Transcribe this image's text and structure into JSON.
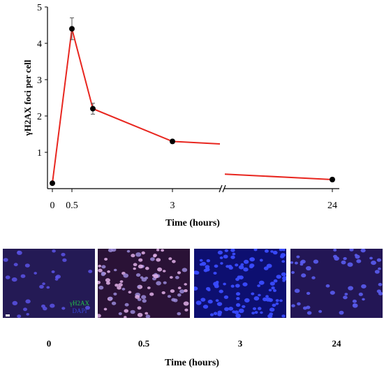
{
  "chart_data": {
    "type": "line",
    "ylabel": "γH2AX foci per cell",
    "xlabel": "Time (hours)",
    "ylim": [
      0,
      5
    ],
    "yticks": [
      1,
      2,
      3,
      4,
      5
    ],
    "xticks": [
      "0",
      "0.5",
      "3",
      "24"
    ],
    "axis_break": true,
    "series": [
      {
        "points": [
          {
            "x": 0,
            "y": 0.15,
            "err": 0
          },
          {
            "x": 0.5,
            "y": 4.4,
            "err": 0.3
          },
          {
            "x": 1,
            "y": 2.2,
            "err": 0.15
          },
          {
            "x": 3,
            "y": 1.3,
            "err": 0.05
          },
          {
            "x": 24,
            "y": 0.25,
            "err": 0.05
          }
        ],
        "trailing_segment_end": {
          "x": 5,
          "y": 1.23
        },
        "leading_segment_start": {
          "x": 18,
          "y": 0.4
        }
      }
    ],
    "colors": {
      "line": "#e8261f",
      "marker": "#000000"
    }
  },
  "panels": {
    "labels": [
      "0",
      "0.5",
      "3",
      "24"
    ],
    "legend": {
      "gh2ax": "γH2AX",
      "dapi": "DAPI"
    },
    "colors": {
      "gh2ax": "#22c24a",
      "dapi": "#3a46d8"
    }
  },
  "bottom_xlabel": "Time (hours)"
}
